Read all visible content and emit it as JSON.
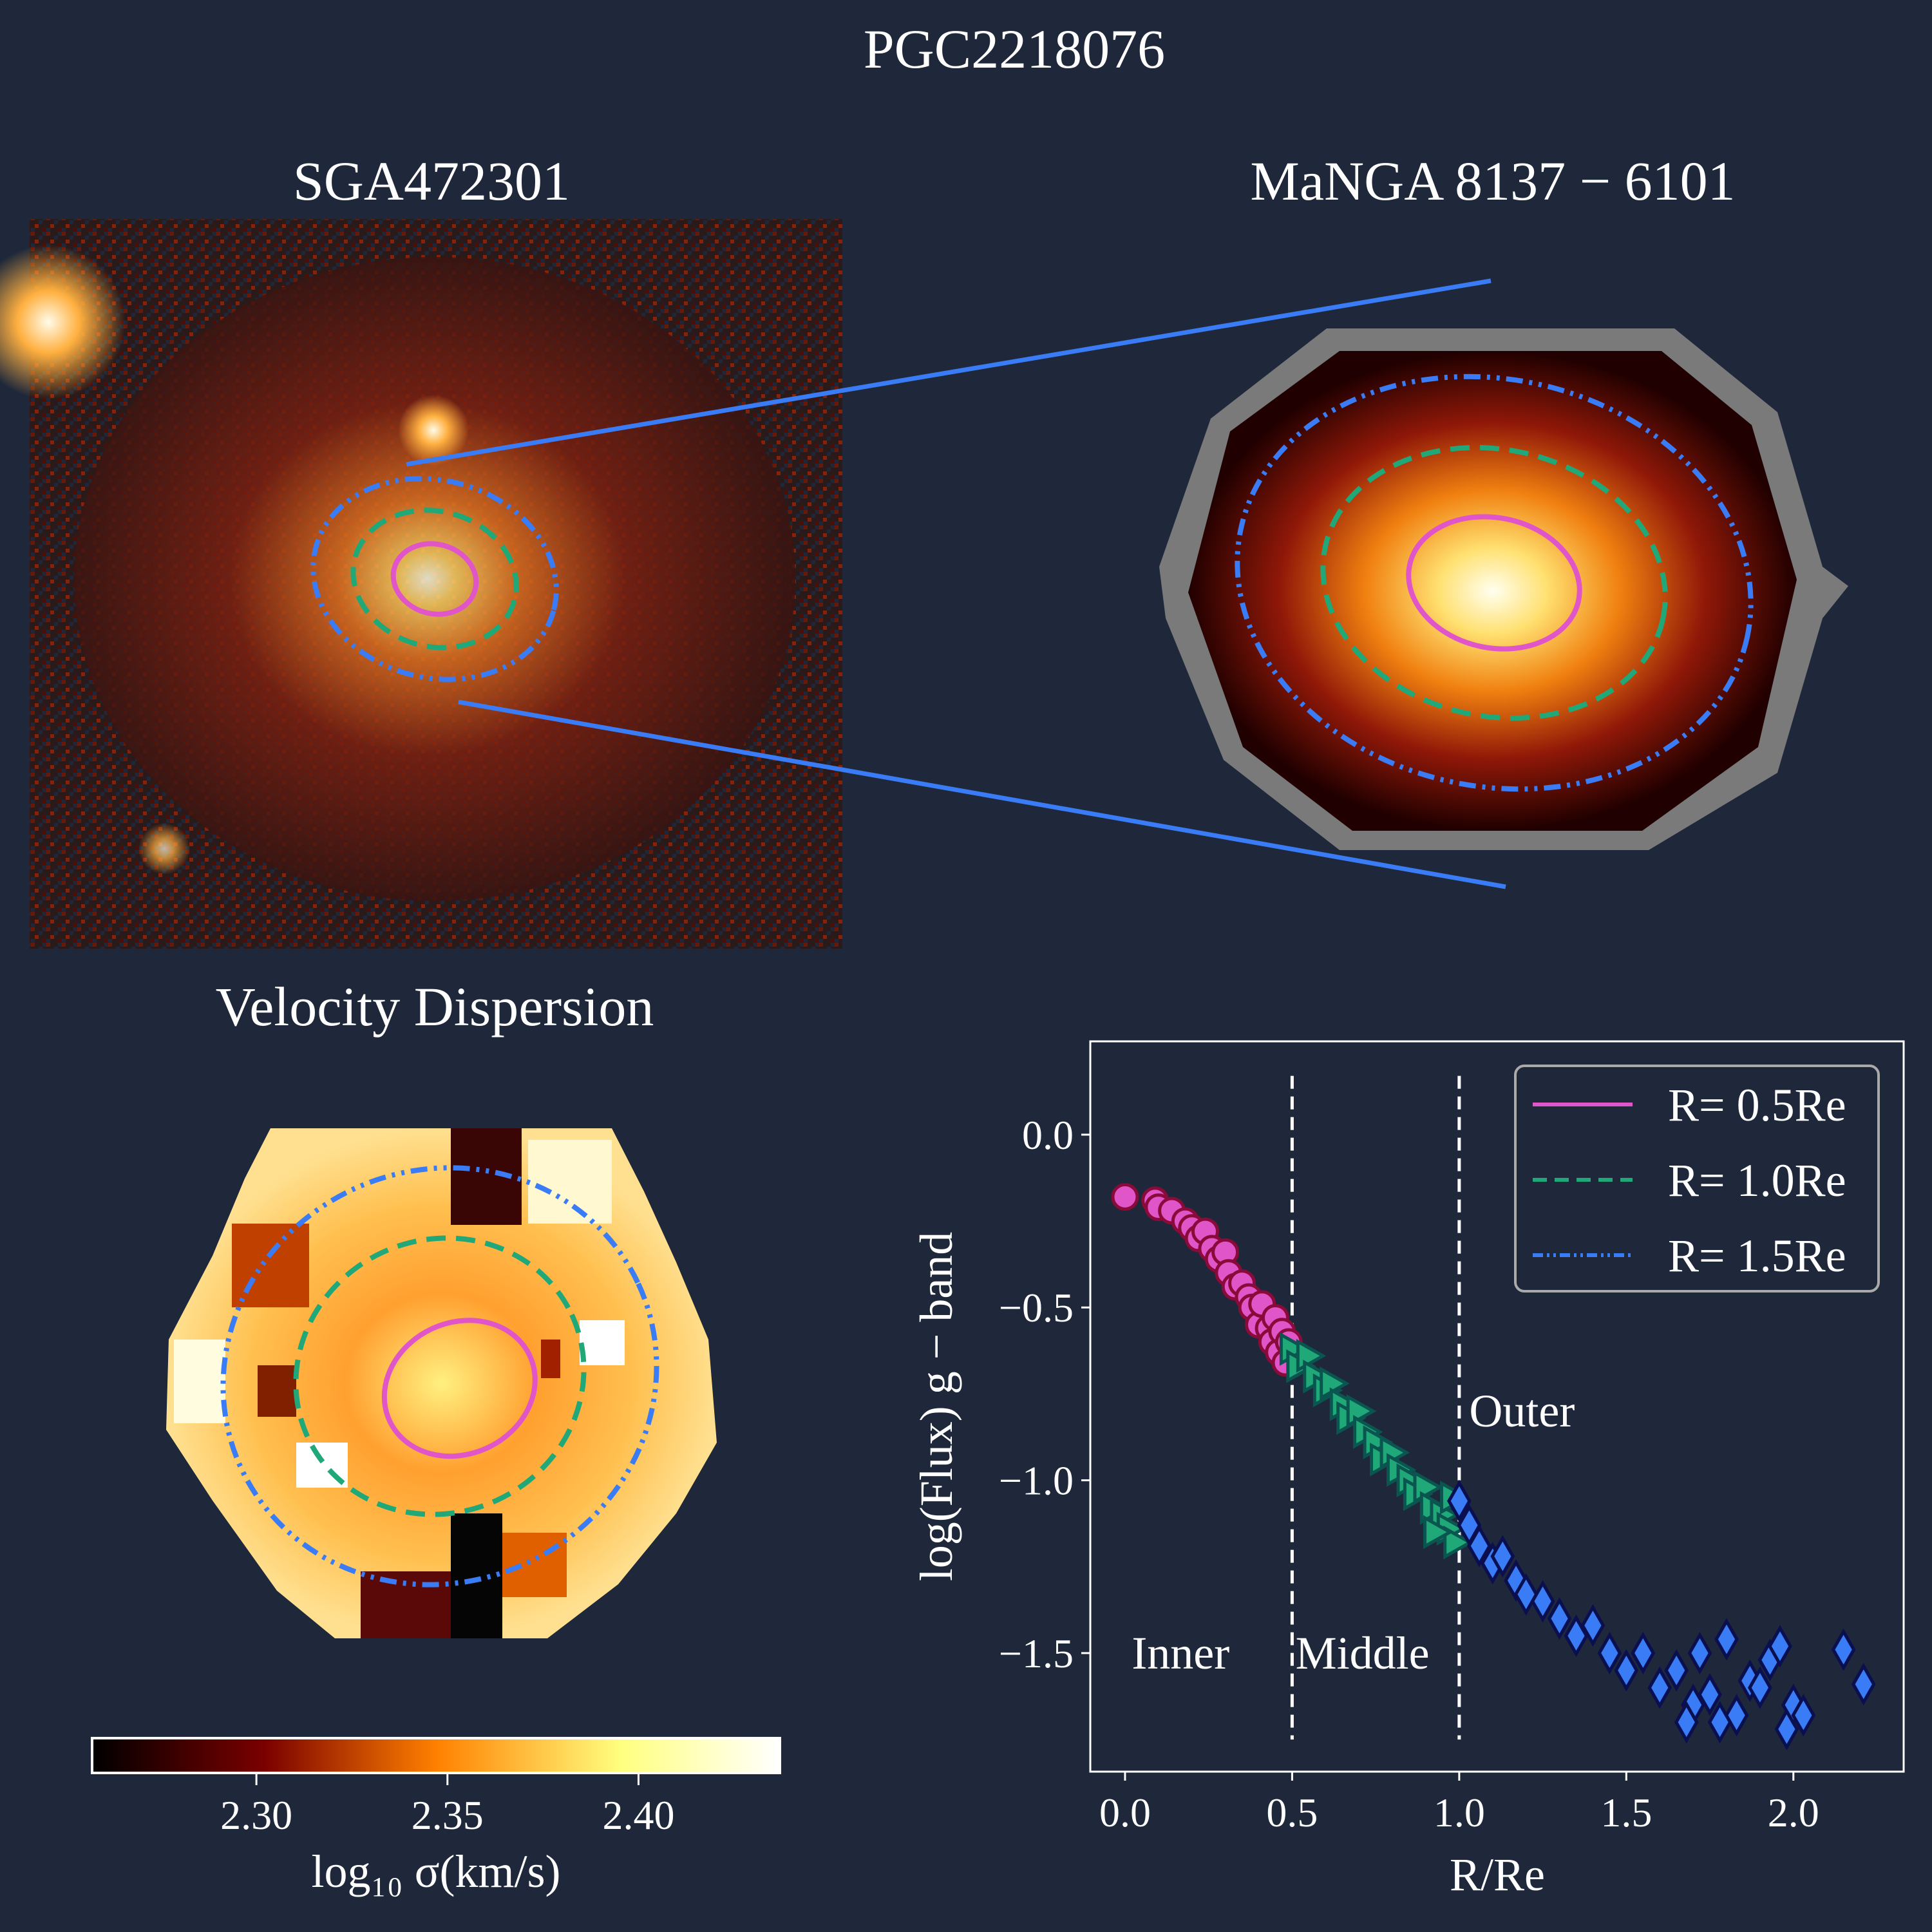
{
  "figure_title": "PGC2218076",
  "panels": {
    "optical_title": "SGA472301",
    "manga_title": "MaNGA 8137 − 6101",
    "dispersion_title": "Velocity Dispersion"
  },
  "colorbar": {
    "label": "log₁₀ σ(km/s)",
    "ticks": [
      "2.30",
      "2.35",
      "2.40"
    ],
    "tick_values": [
      2.3,
      2.35,
      2.4
    ],
    "range": [
      2.257,
      2.437
    ],
    "colormap": "afmhot"
  },
  "colors": {
    "background": "#1e283a",
    "inner": "#e055c8",
    "middle": "#20a878",
    "outer": "#3a7cf5",
    "connector": "#3a7cf5"
  },
  "chart_data": {
    "type": "scatter",
    "title": "",
    "xlabel": "R/Re",
    "ylabel": "log(Flux) g − band",
    "xlim": [
      -0.104,
      2.33
    ],
    "ylim": [
      -1.843,
      0.27
    ],
    "xticks": [
      "0.0",
      "0.5",
      "1.0",
      "1.5",
      "2.0"
    ],
    "xtick_values": [
      0,
      0.5,
      1.0,
      1.5,
      2.0
    ],
    "yticks": [
      "0.0",
      "−0.5",
      "−1.0",
      "−1.5"
    ],
    "ytick_values": [
      0,
      -0.5,
      -1.0,
      -1.5
    ],
    "grid": false,
    "vlines": [
      0.5,
      1.0
    ],
    "annotations": [
      {
        "text": "Inner",
        "x": 0.02,
        "y": -1.5
      },
      {
        "text": "Middle",
        "x": 0.51,
        "y": -1.5
      },
      {
        "text": "Outer",
        "x": 1.03,
        "y": -0.8
      }
    ],
    "legend": {
      "placement": "top-right",
      "entries": [
        {
          "label": "R= 0.5Re",
          "style": "solid",
          "color": "#e055c8"
        },
        {
          "label": "R= 1.0Re",
          "style": "dashed",
          "color": "#20a878"
        },
        {
          "label": "R= 1.5Re",
          "style": "dashdot",
          "color": "#3a7cf5"
        }
      ]
    },
    "series": [
      {
        "name": "Inner",
        "marker": "circle",
        "color": "#e055c8",
        "edge": "#8a0a3a",
        "x": [
          0.0,
          0.09,
          0.1,
          0.14,
          0.18,
          0.2,
          0.22,
          0.24,
          0.26,
          0.28,
          0.3,
          0.31,
          0.33,
          0.35,
          0.37,
          0.38,
          0.4,
          0.41,
          0.43,
          0.44,
          0.45,
          0.46,
          0.47,
          0.48,
          0.49
        ],
        "y": [
          -0.18,
          -0.19,
          -0.21,
          -0.22,
          -0.25,
          -0.27,
          -0.3,
          -0.28,
          -0.33,
          -0.36,
          -0.34,
          -0.4,
          -0.44,
          -0.43,
          -0.47,
          -0.5,
          -0.55,
          -0.49,
          -0.56,
          -0.6,
          -0.53,
          -0.63,
          -0.57,
          -0.66,
          -0.6
        ]
      },
      {
        "name": "Middle",
        "marker": "triangle-right",
        "color": "#20a878",
        "edge": "#0a5550",
        "x": [
          0.5,
          0.52,
          0.55,
          0.57,
          0.6,
          0.62,
          0.65,
          0.67,
          0.7,
          0.72,
          0.75,
          0.77,
          0.8,
          0.82,
          0.85,
          0.87,
          0.9,
          0.92,
          0.95,
          0.97,
          0.99,
          0.98,
          0.93
        ],
        "y": [
          -0.62,
          -0.67,
          -0.64,
          -0.7,
          -0.74,
          -0.72,
          -0.78,
          -0.82,
          -0.8,
          -0.86,
          -0.89,
          -0.94,
          -0.92,
          -0.97,
          -1.0,
          -1.04,
          -1.02,
          -1.08,
          -1.1,
          -1.14,
          -1.18,
          -1.05,
          -1.15
        ]
      },
      {
        "name": "Outer",
        "marker": "diamond",
        "color": "#3a7cf5",
        "edge": "#0a0f50",
        "x": [
          1.0,
          1.03,
          1.06,
          1.1,
          1.13,
          1.17,
          1.2,
          1.25,
          1.3,
          1.35,
          1.4,
          1.45,
          1.5,
          1.55,
          1.6,
          1.65,
          1.7,
          1.72,
          1.75,
          1.8,
          1.83,
          1.87,
          1.9,
          1.93,
          1.96,
          1.98,
          2.0,
          2.03,
          2.15,
          2.21,
          1.68,
          1.78
        ],
        "y": [
          -1.06,
          -1.13,
          -1.19,
          -1.24,
          -1.22,
          -1.29,
          -1.33,
          -1.35,
          -1.4,
          -1.45,
          -1.42,
          -1.5,
          -1.55,
          -1.5,
          -1.6,
          -1.55,
          -1.65,
          -1.5,
          -1.62,
          -1.46,
          -1.68,
          -1.58,
          -1.6,
          -1.52,
          -1.48,
          -1.72,
          -1.65,
          -1.68,
          -1.49,
          -1.59,
          -1.7,
          -1.7
        ]
      }
    ]
  }
}
